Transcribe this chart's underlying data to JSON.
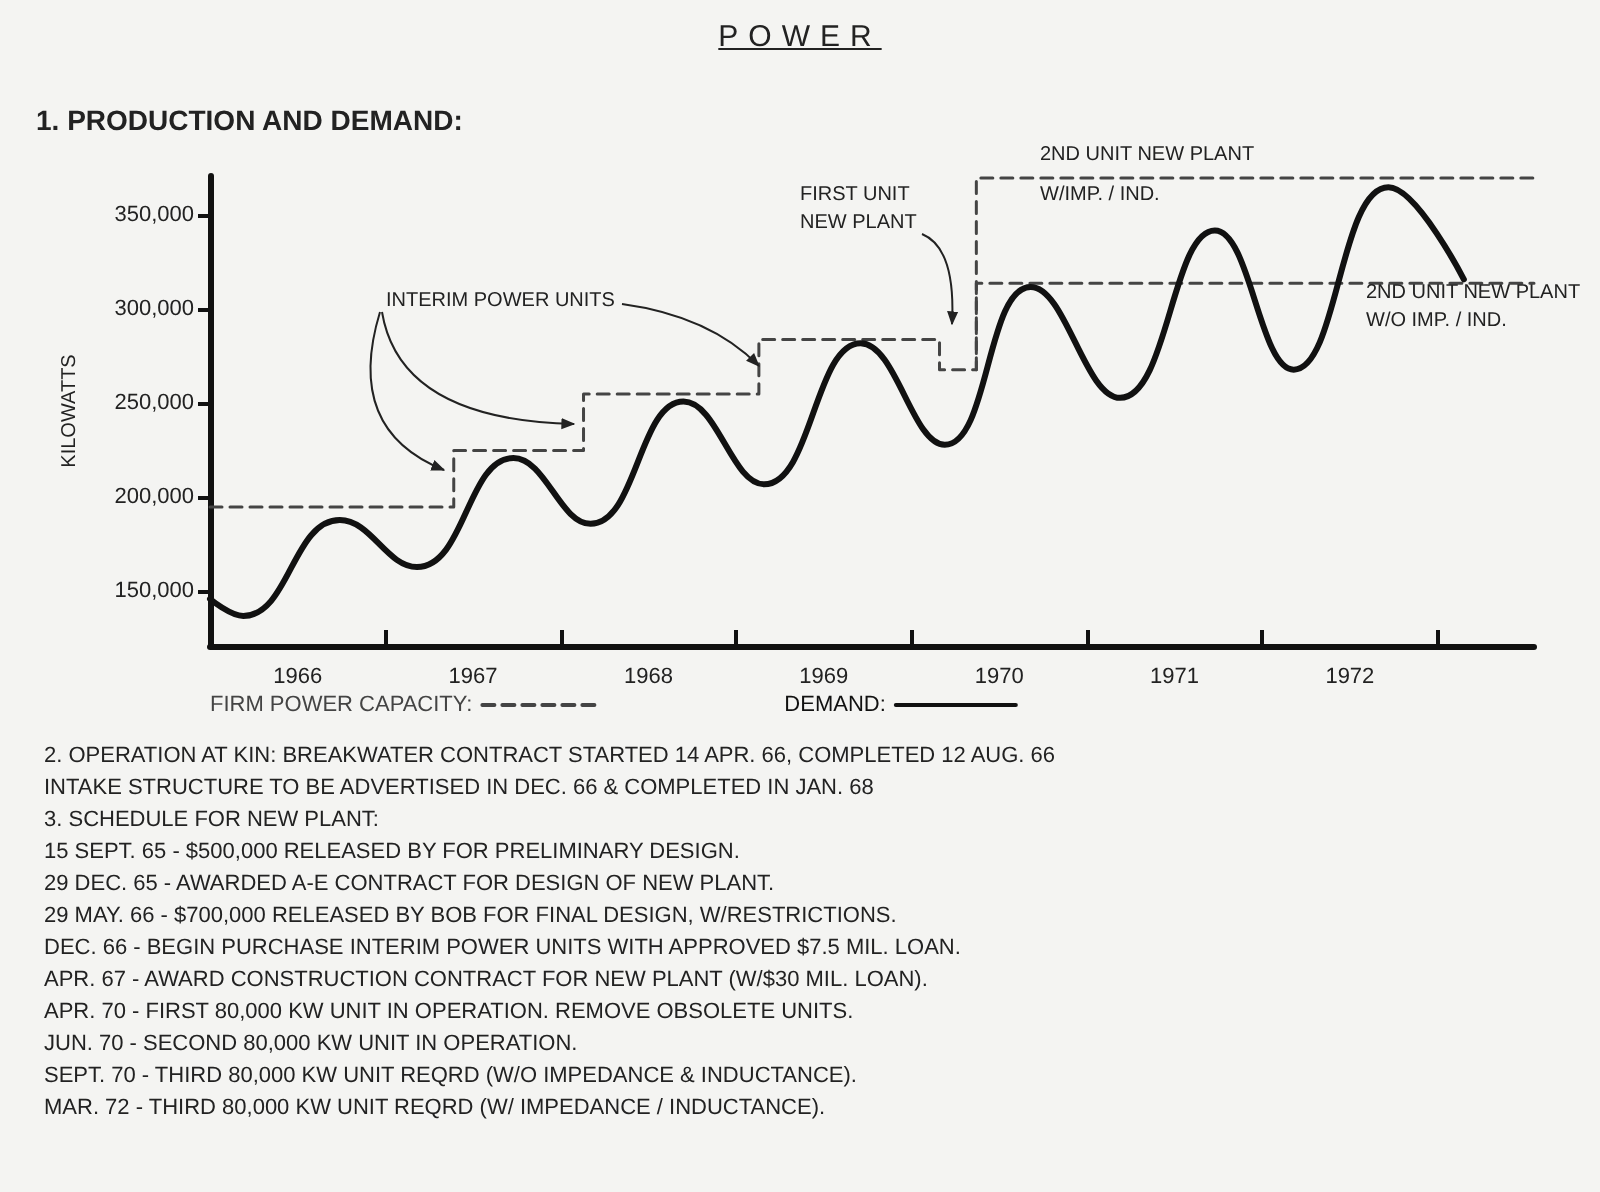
{
  "chart_data": {
    "type": "line",
    "title": "POWER",
    "subtitle": "1. PRODUCTION AND DEMAND:",
    "ylabel": "KILOWATTS",
    "xlim": [
      1965,
      1972.55
    ],
    "ylim": [
      121000,
      371000
    ],
    "xticks": [
      {
        "value": 1965.5,
        "label": "1966"
      },
      {
        "value": 1966,
        "label": null
      },
      {
        "value": 1966.5,
        "label": "1967"
      },
      {
        "value": 1967,
        "label": null
      },
      {
        "value": 1967.5,
        "label": "1968"
      },
      {
        "value": 1968,
        "label": null
      },
      {
        "value": 1968.5,
        "label": "1969"
      },
      {
        "value": 1969,
        "label": null
      },
      {
        "value": 1969.5,
        "label": "1970"
      },
      {
        "value": 1970,
        "label": null
      },
      {
        "value": 1970.5,
        "label": "1971"
      },
      {
        "value": 1971,
        "label": null
      },
      {
        "value": 1971.5,
        "label": "1972"
      },
      {
        "value": 1972,
        "label": null
      }
    ],
    "yticks": [
      {
        "value": 150000,
        "label": "150,000"
      },
      {
        "value": 200000,
        "label": "200,000"
      },
      {
        "value": 250000,
        "label": "250,000"
      },
      {
        "value": 300000,
        "label": "300,000"
      },
      {
        "value": 350000,
        "label": "350,000"
      }
    ],
    "grid": false,
    "legend": "bottom",
    "marker": "none",
    "series": [
      {
        "name": "FIRM POWER CAPACITY:",
        "color": "#444444",
        "line_style": "dashed",
        "x": [
          1965,
          1966.39,
          1966.39,
          1967.13,
          1967.13,
          1968.13,
          1968.13,
          1969.16,
          1969.16,
          1969.37,
          1969.37,
          1972.55
        ],
        "values": [
          195000,
          195000,
          225000,
          225000,
          255000,
          255000,
          284000,
          284000,
          268000,
          268000,
          370000,
          370000
        ]
      },
      {
        "color": "#444444",
        "line_style": "dashed",
        "x": [
          1969.37,
          1969.37,
          1972.55
        ],
        "values": [
          268000,
          314000,
          314000
        ]
      },
      {
        "name": "DEMAND:",
        "color": "#111111",
        "line_style": "solid",
        "x": [
          1965,
          1965.19,
          1965.74,
          1966.18,
          1966.73,
          1967.17,
          1967.7,
          1968.16,
          1968.71,
          1969.19,
          1969.68,
          1970.19,
          1970.73,
          1971.18,
          1971.72,
          1972.15
        ],
        "values": [
          146000,
          137000,
          188000,
          163000,
          221000,
          186000,
          251000,
          207000,
          282000,
          228000,
          312000,
          253000,
          342000,
          268000,
          365000,
          316000
        ]
      }
    ],
    "annotations": [
      {
        "text": "INTERIM POWER UNITS",
        "x": 1968.13,
        "y": 270000
      },
      "FIRST UNIT\nNEW PLANT",
      "2ND UNIT NEW PLANT",
      "W/IMP. / IND.",
      "2ND UNIT NEW PLANT\nW/O IMP. / IND.",
      "2. OPERATION AT KIN: BREAKWATER CONTRACT STARTED 14 APR. 66, COMPLETED 12 AUG. 66",
      "INTAKE STRUCTURE TO BE ADVERTISED IN DEC. 66 & COMPLETED IN JAN. 68",
      "3. SCHEDULE FOR NEW PLANT:",
      "15 SEPT. 65 - $500,000 RELEASED BY FOR PRELIMINARY DESIGN.",
      "29 DEC. 65 - AWARDED A-E CONTRACT FOR DESIGN OF NEW PLANT.",
      "29 MAY. 66 - $700,000 RELEASED BY BOB FOR FINAL DESIGN, W/RESTRICTIONS.",
      "DEC. 66 - BEGIN PURCHASE INTERIM POWER UNITS WITH APPROVED $7.5 MIL. LOAN.",
      "APR. 67 - AWARD CONSTRUCTION CONTRACT FOR NEW PLANT (W/$30 MIL. LOAN).",
      "APR. 70 - FIRST 80,000 KW UNIT IN OPERATION. REMOVE OBSOLETE UNITS.",
      "JUN. 70 - SECOND 80,000 KW UNIT IN OPERATION.",
      "SEPT. 70 - THIRD 80,000 KW UNIT REQRD (W/O IMPEDANCE & INDUCTANCE).",
      "MAR. 72 - THIRD 80,000 KW UNIT REQRD (W/ IMPEDANCE / INDUCTANCE)."
    ]
  }
}
